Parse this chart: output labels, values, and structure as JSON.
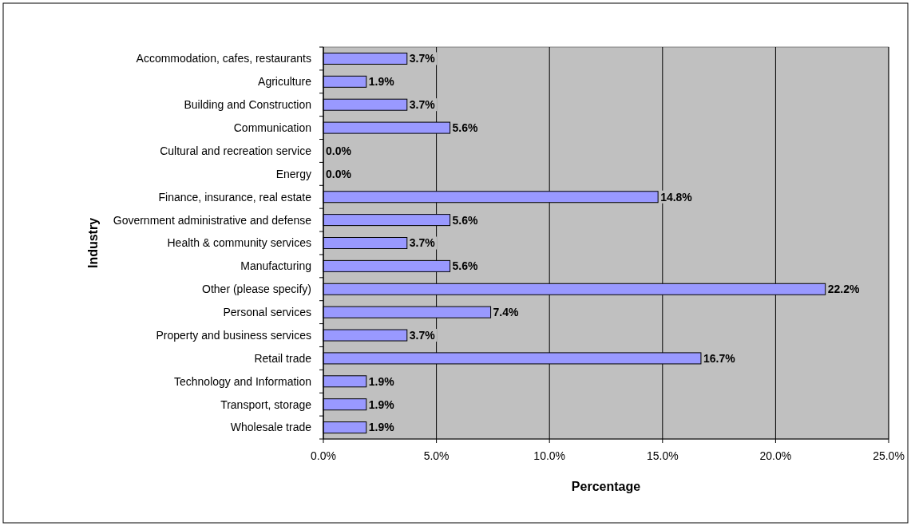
{
  "chart_data": {
    "type": "bar",
    "orientation": "horizontal",
    "xlabel": "Percentage",
    "ylabel": "Industry",
    "categories": [
      "Accommodation, cafes, restaurants",
      "Agriculture",
      "Building and Construction",
      "Communication",
      "Cultural and recreation service",
      "Energy",
      "Finance, insurance, real estate",
      "Government administrative and defense",
      "Health & community services",
      "Manufacturing",
      "Other (please specify)",
      "Personal services",
      "Property and business services",
      "Retail trade",
      "Technology and Information",
      "Transport, storage",
      "Wholesale trade"
    ],
    "series": [
      {
        "color": "#9999ff",
        "values": [
          3.7,
          1.9,
          3.7,
          5.6,
          0.0,
          0.0,
          14.8,
          5.6,
          3.7,
          5.6,
          22.2,
          7.4,
          3.7,
          16.7,
          1.9,
          1.9,
          1.9
        ],
        "value_labels": [
          "3.7%",
          "1.9%",
          "3.7%",
          "5.6%",
          "0.0%",
          "0.0%",
          "14.8%",
          "5.6%",
          "3.7%",
          "5.6%",
          "22.2%",
          "7.4%",
          "3.7%",
          "16.7%",
          "1.9%",
          "1.9%",
          "1.9%"
        ]
      }
    ],
    "xlim": [
      0,
      25
    ],
    "xticks": [
      {
        "value": 0,
        "label": "0.0%"
      },
      {
        "value": 5,
        "label": "5.0%"
      },
      {
        "value": 10,
        "label": "10.0%"
      },
      {
        "value": 15,
        "label": "15.0%"
      },
      {
        "value": 20,
        "label": "20.0%"
      },
      {
        "value": 25,
        "label": "25.0%"
      }
    ],
    "grid": "x"
  }
}
